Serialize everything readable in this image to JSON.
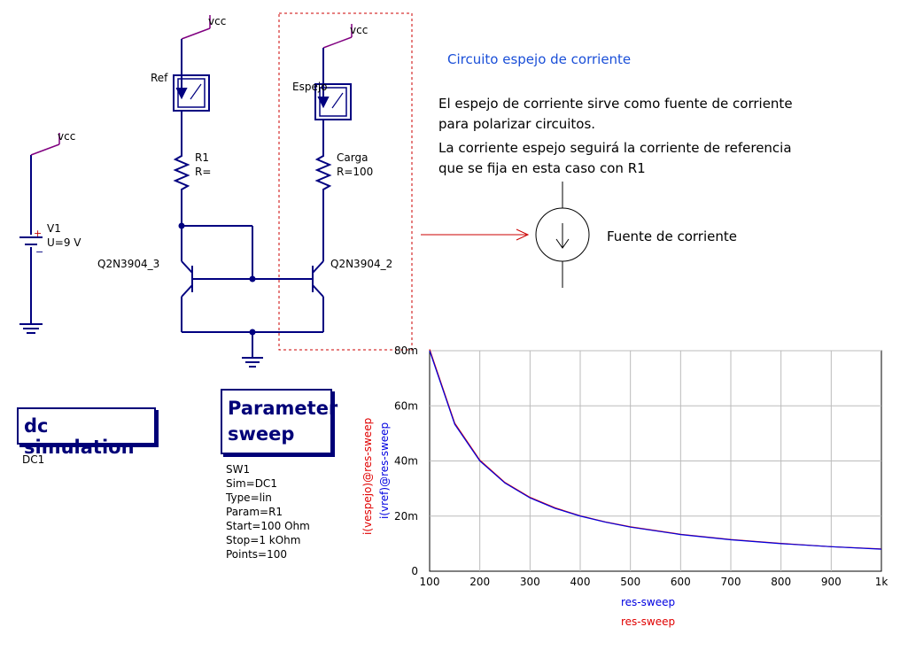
{
  "schematic": {
    "vcc_labels": [
      "vcc",
      "vcc",
      "vcc"
    ],
    "source": {
      "name": "V1",
      "value": "U=9 V"
    },
    "ammeter_ref": "Ref",
    "ammeter_mirror": "Espejo",
    "r1": {
      "name": "R1",
      "value": "R="
    },
    "load": {
      "name": "Carga",
      "value": "R=100"
    },
    "q_left": "Q2N3904_3",
    "q_right": "Q2N3904_2",
    "wire_color": "#000080",
    "highlight_color": "#cc0000"
  },
  "notes": {
    "title": "Circuito espejo de corriente",
    "line1": "El espejo de corriente sirve como fuente de corriente",
    "line2": "para polarizar circuitos.",
    "line3": "La corriente espejo seguirá la corriente de referencia",
    "line4": "que se fija en esta caso con R1",
    "current_source_label": "Fuente de corriente"
  },
  "dc_sim": {
    "title": "dc simulation",
    "name": "DC1"
  },
  "sweep": {
    "title_line1": "Parameter",
    "title_line2": "sweep",
    "props": [
      "SW1",
      "Sim=DC1",
      "Type=lin",
      "Param=R1",
      "Start=100 Ohm",
      "Stop=1 kOhm",
      "Points=100"
    ]
  },
  "chart_data": {
    "type": "line",
    "xlabel": "res-sweep",
    "xlabel2": "res-sweep",
    "ylabels": [
      "i(vespejo)@res-sweep",
      "i(vref)@res-sweep"
    ],
    "xlim": [
      100,
      1000
    ],
    "ylim": [
      0,
      0.08
    ],
    "x_ticks": [
      "100",
      "200",
      "300",
      "400",
      "500",
      "600",
      "700",
      "800",
      "900",
      "1k"
    ],
    "y_ticks": [
      "0",
      "20m",
      "40m",
      "60m",
      "80m"
    ],
    "grid": true,
    "series": [
      {
        "name": "i(vespejo)@res-sweep",
        "color": "#e00000",
        "x": [
          100,
          150,
          200,
          250,
          300,
          350,
          400,
          450,
          500,
          600,
          700,
          800,
          900,
          1000
        ],
        "y": [
          0.0805,
          0.0537,
          0.0403,
          0.0322,
          0.0268,
          0.023,
          0.0201,
          0.0179,
          0.0161,
          0.0134,
          0.0115,
          0.0101,
          0.0089,
          0.0081
        ]
      },
      {
        "name": "i(vref)@res-sweep",
        "color": "#0000e0",
        "x": [
          100,
          150,
          200,
          250,
          300,
          350,
          400,
          450,
          500,
          600,
          700,
          800,
          900,
          1000
        ],
        "y": [
          0.08,
          0.0533,
          0.04,
          0.032,
          0.0266,
          0.0228,
          0.02,
          0.0178,
          0.016,
          0.0133,
          0.0114,
          0.01,
          0.0089,
          0.008
        ]
      }
    ]
  }
}
